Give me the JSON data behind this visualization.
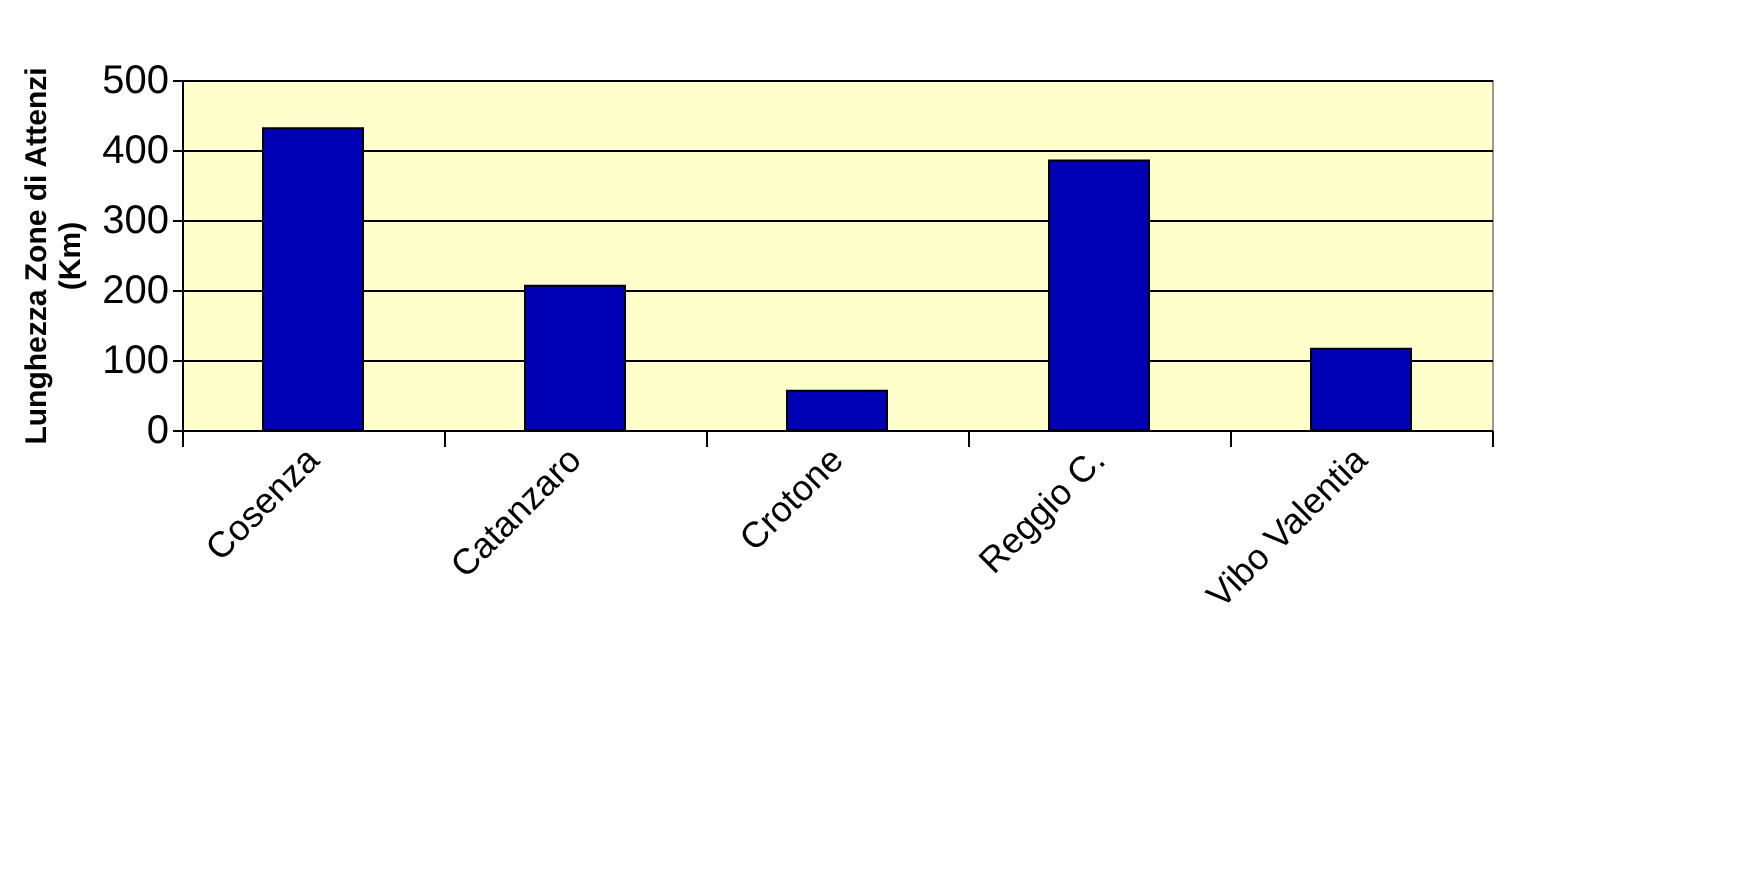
{
  "chart_data": {
    "type": "bar",
    "ylabel": "Lunghezza Zone di Attenzi\n(Km)",
    "categories": [
      "Cosenza",
      "Catanzaro",
      "Crotone",
      "Reggio C.",
      "Vibo Valentia"
    ],
    "values": [
      431,
      206,
      56,
      385,
      116
    ],
    "color": "#0000b4",
    "ylim": [
      0,
      500
    ],
    "yticks": [
      0,
      100,
      200,
      300,
      400,
      500
    ],
    "grid": "y"
  }
}
